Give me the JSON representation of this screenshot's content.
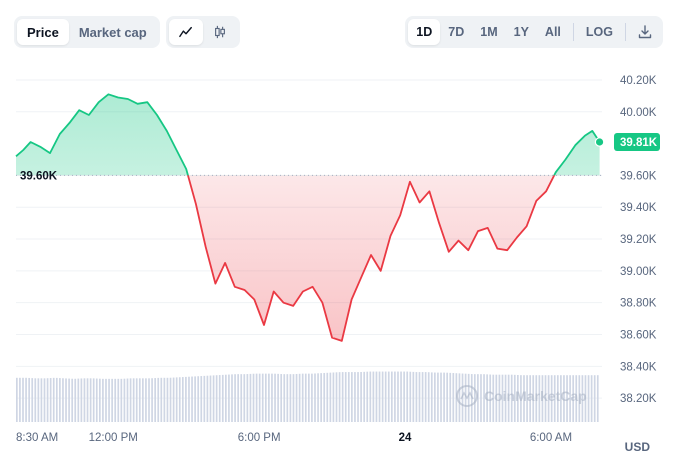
{
  "toolbar": {
    "left_tabs": [
      {
        "label": "Price",
        "active": true
      },
      {
        "label": "Market cap",
        "active": false
      }
    ],
    "chart_types": [
      {
        "icon": "line-chart-icon",
        "active": true
      },
      {
        "icon": "candlestick-icon",
        "active": false
      }
    ],
    "ranges": [
      {
        "label": "1D",
        "active": true
      },
      {
        "label": "7D",
        "active": false
      },
      {
        "label": "1M",
        "active": false
      },
      {
        "label": "1Y",
        "active": false
      },
      {
        "label": "All",
        "active": false
      }
    ],
    "log_label": "LOG",
    "download_icon": "download-icon"
  },
  "watermark": "CoinMarketCap",
  "currency": "USD",
  "colors": {
    "up": "#16c784",
    "down": "#ea3943",
    "grid": "#eff2f5",
    "volume": "#cfd6e4",
    "text_muted": "#58667e"
  },
  "chart_data": {
    "type": "area",
    "baseline": 39600,
    "baseline_label": "39.60K",
    "current_value_label": "39.81K",
    "y_ticks": [
      {
        "v": 40200,
        "label": "40.20K"
      },
      {
        "v": 40000,
        "label": "40.00K"
      },
      {
        "v": 39600,
        "label": "39.60K"
      },
      {
        "v": 39400,
        "label": "39.40K"
      },
      {
        "v": 39200,
        "label": "39.20K"
      },
      {
        "v": 39000,
        "label": "39.00K"
      },
      {
        "v": 38800,
        "label": "38.80K"
      },
      {
        "v": 38600,
        "label": "38.60K"
      },
      {
        "v": 38400,
        "label": "38.40K"
      },
      {
        "v": 38200,
        "label": "38.20K"
      }
    ],
    "ylim": [
      38050,
      40250
    ],
    "x_ticks": [
      {
        "t": 0.5,
        "label": "8:30 AM",
        "bold": false
      },
      {
        "t": 4,
        "label": "12:00 PM",
        "bold": false
      },
      {
        "t": 10,
        "label": "6:00 PM",
        "bold": false
      },
      {
        "t": 16,
        "label": "24",
        "bold": true
      },
      {
        "t": 22,
        "label": "6:00 AM",
        "bold": false
      }
    ],
    "xlim": [
      0,
      24.1
    ],
    "x": [
      0,
      0.3,
      0.6,
      1.0,
      1.4,
      1.8,
      2.2,
      2.6,
      3.0,
      3.4,
      3.8,
      4.2,
      4.6,
      5.0,
      5.4,
      5.8,
      6.2,
      6.6,
      7.0,
      7.4,
      7.8,
      8.2,
      8.6,
      9.0,
      9.4,
      9.8,
      10.2,
      10.6,
      11.0,
      11.4,
      11.8,
      12.2,
      12.6,
      13.0,
      13.4,
      13.8,
      14.2,
      14.6,
      15.0,
      15.4,
      15.8,
      16.2,
      16.6,
      17.0,
      17.4,
      17.8,
      18.2,
      18.6,
      19.0,
      19.4,
      19.8,
      20.2,
      20.6,
      21.0,
      21.4,
      21.8,
      22.2,
      22.6,
      23.0,
      23.4,
      23.7,
      24.0
    ],
    "values": [
      39720,
      39760,
      39810,
      39780,
      39740,
      39860,
      39930,
      40010,
      39980,
      40060,
      40110,
      40090,
      40080,
      40050,
      40060,
      39980,
      39880,
      39760,
      39640,
      39420,
      39150,
      38920,
      39050,
      38900,
      38880,
      38820,
      38660,
      38870,
      38800,
      38780,
      38870,
      38900,
      38800,
      38580,
      38560,
      38820,
      38960,
      39100,
      39000,
      39220,
      39350,
      39560,
      39430,
      39500,
      39300,
      39120,
      39190,
      39130,
      39250,
      39270,
      39140,
      39130,
      39210,
      39280,
      39440,
      39500,
      39620,
      39700,
      39790,
      39850,
      39880,
      39810
    ],
    "volume": [
      0.85,
      0.85,
      0.84,
      0.84,
      0.85,
      0.84,
      0.83,
      0.84,
      0.84,
      0.83,
      0.83,
      0.83,
      0.84,
      0.84,
      0.84,
      0.85,
      0.85,
      0.86,
      0.87,
      0.88,
      0.89,
      0.9,
      0.91,
      0.92,
      0.92,
      0.93,
      0.93,
      0.93,
      0.92,
      0.92,
      0.93,
      0.93,
      0.94,
      0.95,
      0.96,
      0.96,
      0.96,
      0.97,
      0.97,
      0.97,
      0.97,
      0.97,
      0.96,
      0.96,
      0.95,
      0.95,
      0.94,
      0.93,
      0.92,
      0.92,
      0.91,
      0.91,
      0.91,
      0.9,
      0.9,
      0.9,
      0.9,
      0.9,
      0.9,
      0.9,
      0.9,
      0.9
    ]
  }
}
